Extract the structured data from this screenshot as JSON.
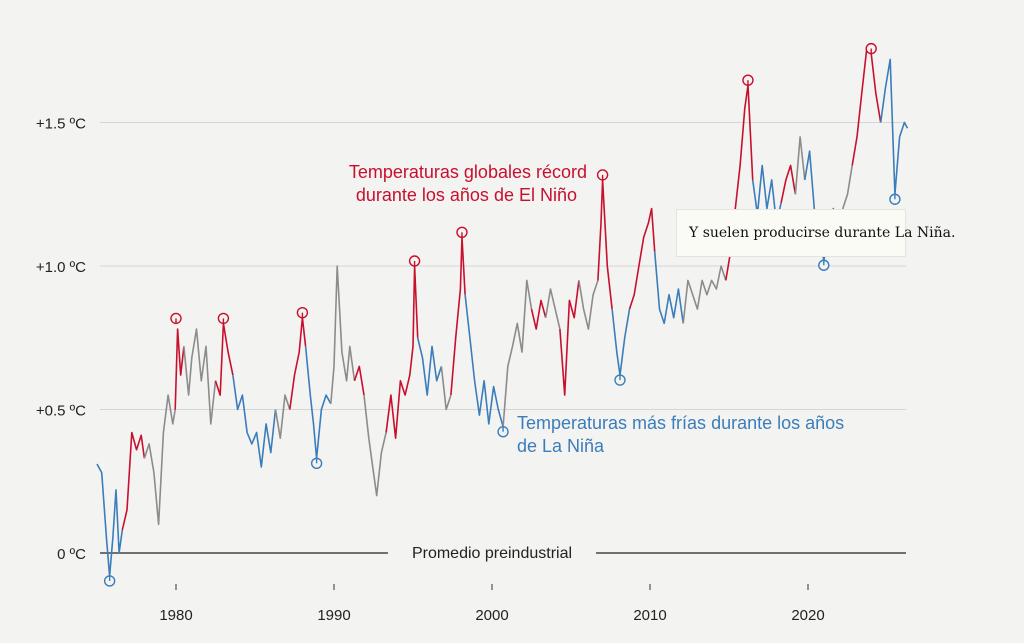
{
  "chart_data": {
    "type": "line",
    "ylabel": "",
    "xlabel": "",
    "ylim": [
      -0.1,
      1.85
    ],
    "xlim": [
      1975,
      2026.3
    ],
    "y_ticks": [
      {
        "value": 0,
        "label": "0 ºC"
      },
      {
        "value": 0.5,
        "label": "+0.5 ºC"
      },
      {
        "value": 1.0,
        "label": "+1.0 ºC"
      },
      {
        "value": 1.5,
        "label": "+1.5 ºC"
      }
    ],
    "x_ticks": [
      {
        "value": 1980,
        "label": "1980"
      },
      {
        "value": 1990,
        "label": "1990"
      },
      {
        "value": 2000,
        "label": "2000"
      },
      {
        "value": 2010,
        "label": "2010"
      },
      {
        "value": 2020,
        "label": "2020"
      }
    ],
    "baseline_label": "Promedio preindustrial",
    "grid": true,
    "colors": {
      "el_nino": "#c8102e",
      "la_nina": "#3b7dbb",
      "neutral": "#8c8c8c"
    },
    "annotations": {
      "el_nino": [
        "Temperaturas globales récord",
        "durante los años de El Niño"
      ],
      "la_nina": [
        "Temperaturas más frías durante los años",
        "de La Niña"
      ]
    },
    "series": [
      {
        "phase": "la_nina",
        "points": [
          [
            1975.0,
            0.31
          ],
          [
            1975.3,
            0.28
          ],
          [
            1975.6,
            0.05
          ],
          [
            1975.8,
            -0.08
          ],
          [
            1976.0,
            0.05
          ],
          [
            1976.2,
            0.22
          ],
          [
            1976.4,
            0.0
          ],
          [
            1976.6,
            0.08
          ]
        ]
      },
      {
        "phase": "el_nino",
        "points": [
          [
            1976.6,
            0.08
          ],
          [
            1976.9,
            0.15
          ],
          [
            1977.2,
            0.42
          ],
          [
            1977.5,
            0.36
          ],
          [
            1977.8,
            0.41
          ],
          [
            1978.0,
            0.33
          ]
        ]
      },
      {
        "phase": "neutral",
        "points": [
          [
            1978.0,
            0.33
          ],
          [
            1978.3,
            0.38
          ],
          [
            1978.6,
            0.28
          ],
          [
            1978.9,
            0.1
          ],
          [
            1979.2,
            0.42
          ],
          [
            1979.5,
            0.55
          ],
          [
            1979.8,
            0.45
          ],
          [
            1979.95,
            0.5
          ]
        ]
      },
      {
        "phase": "el_nino",
        "points": [
          [
            1979.95,
            0.5
          ],
          [
            1980.1,
            0.78
          ],
          [
            1980.3,
            0.62
          ],
          [
            1980.5,
            0.72
          ]
        ]
      },
      {
        "phase": "neutral",
        "points": [
          [
            1980.5,
            0.72
          ],
          [
            1980.8,
            0.55
          ],
          [
            1981.0,
            0.68
          ],
          [
            1981.3,
            0.78
          ],
          [
            1981.6,
            0.6
          ],
          [
            1981.9,
            0.72
          ],
          [
            1982.2,
            0.45
          ],
          [
            1982.5,
            0.6
          ]
        ]
      },
      {
        "phase": "el_nino",
        "points": [
          [
            1982.5,
            0.6
          ],
          [
            1982.8,
            0.55
          ],
          [
            1983.0,
            0.8
          ],
          [
            1983.3,
            0.7
          ],
          [
            1983.6,
            0.62
          ]
        ]
      },
      {
        "phase": "la_nina",
        "points": [
          [
            1983.6,
            0.62
          ],
          [
            1983.9,
            0.5
          ],
          [
            1984.2,
            0.55
          ],
          [
            1984.5,
            0.42
          ],
          [
            1984.8,
            0.38
          ],
          [
            1985.1,
            0.42
          ],
          [
            1985.4,
            0.3
          ],
          [
            1985.7,
            0.45
          ],
          [
            1986.0,
            0.35
          ],
          [
            1986.3,
            0.5
          ]
        ]
      },
      {
        "phase": "neutral",
        "points": [
          [
            1986.3,
            0.5
          ],
          [
            1986.6,
            0.4
          ],
          [
            1986.9,
            0.55
          ],
          [
            1987.2,
            0.5
          ]
        ]
      },
      {
        "phase": "el_nino",
        "points": [
          [
            1987.2,
            0.5
          ],
          [
            1987.5,
            0.62
          ],
          [
            1987.8,
            0.7
          ],
          [
            1988.0,
            0.82
          ],
          [
            1988.2,
            0.72
          ]
        ]
      },
      {
        "phase": "la_nina",
        "points": [
          [
            1988.2,
            0.72
          ],
          [
            1988.5,
            0.55
          ],
          [
            1988.7,
            0.45
          ],
          [
            1988.9,
            0.33
          ],
          [
            1989.2,
            0.5
          ],
          [
            1989.5,
            0.55
          ],
          [
            1989.8,
            0.52
          ]
        ]
      },
      {
        "phase": "neutral",
        "points": [
          [
            1989.8,
            0.52
          ],
          [
            1990.0,
            0.65
          ],
          [
            1990.2,
            1.0
          ],
          [
            1990.5,
            0.7
          ],
          [
            1990.8,
            0.6
          ],
          [
            1991.0,
            0.72
          ],
          [
            1991.3,
            0.6
          ]
        ]
      },
      {
        "phase": "el_nino",
        "points": [
          [
            1991.3,
            0.6
          ],
          [
            1991.6,
            0.65
          ],
          [
            1991.9,
            0.55
          ]
        ]
      },
      {
        "phase": "neutral",
        "points": [
          [
            1991.9,
            0.55
          ],
          [
            1992.2,
            0.4
          ],
          [
            1992.5,
            0.28
          ],
          [
            1992.7,
            0.2
          ],
          [
            1993.0,
            0.35
          ],
          [
            1993.3,
            0.42
          ]
        ]
      },
      {
        "phase": "el_nino",
        "points": [
          [
            1993.3,
            0.42
          ],
          [
            1993.6,
            0.55
          ],
          [
            1993.9,
            0.4
          ],
          [
            1994.2,
            0.6
          ],
          [
            1994.5,
            0.55
          ],
          [
            1994.8,
            0.62
          ],
          [
            1995.0,
            0.72
          ],
          [
            1995.1,
            1.0
          ],
          [
            1995.3,
            0.75
          ]
        ]
      },
      {
        "phase": "la_nina",
        "points": [
          [
            1995.3,
            0.75
          ],
          [
            1995.6,
            0.68
          ],
          [
            1995.9,
            0.55
          ],
          [
            1996.2,
            0.72
          ],
          [
            1996.5,
            0.6
          ],
          [
            1996.8,
            0.65
          ]
        ]
      },
      {
        "phase": "neutral",
        "points": [
          [
            1996.8,
            0.65
          ],
          [
            1997.1,
            0.5
          ],
          [
            1997.4,
            0.55
          ]
        ]
      },
      {
        "phase": "el_nino",
        "points": [
          [
            1997.4,
            0.55
          ],
          [
            1997.7,
            0.75
          ],
          [
            1998.0,
            0.92
          ],
          [
            1998.1,
            1.1
          ],
          [
            1998.3,
            0.9
          ]
        ]
      },
      {
        "phase": "la_nina",
        "points": [
          [
            1998.3,
            0.9
          ],
          [
            1998.6,
            0.75
          ],
          [
            1998.9,
            0.6
          ],
          [
            1999.2,
            0.48
          ],
          [
            1999.5,
            0.6
          ],
          [
            1999.8,
            0.45
          ],
          [
            2000.1,
            0.58
          ],
          [
            2000.4,
            0.5
          ],
          [
            2000.7,
            0.44
          ]
        ]
      },
      {
        "phase": "neutral",
        "points": [
          [
            2000.7,
            0.44
          ],
          [
            2001.0,
            0.65
          ],
          [
            2001.3,
            0.72
          ],
          [
            2001.6,
            0.8
          ],
          [
            2001.9,
            0.7
          ],
          [
            2002.2,
            0.95
          ],
          [
            2002.5,
            0.85
          ]
        ]
      },
      {
        "phase": "el_nino",
        "points": [
          [
            2002.5,
            0.85
          ],
          [
            2002.8,
            0.78
          ],
          [
            2003.1,
            0.88
          ],
          [
            2003.4,
            0.82
          ]
        ]
      },
      {
        "phase": "neutral",
        "points": [
          [
            2003.4,
            0.82
          ],
          [
            2003.7,
            0.92
          ],
          [
            2004.0,
            0.85
          ],
          [
            2004.3,
            0.78
          ]
        ]
      },
      {
        "phase": "el_nino",
        "points": [
          [
            2004.3,
            0.78
          ],
          [
            2004.6,
            0.55
          ],
          [
            2004.9,
            0.88
          ],
          [
            2005.2,
            0.82
          ],
          [
            2005.5,
            0.95
          ]
        ]
      },
      {
        "phase": "neutral",
        "points": [
          [
            2005.5,
            0.95
          ],
          [
            2005.8,
            0.85
          ],
          [
            2006.1,
            0.78
          ],
          [
            2006.4,
            0.9
          ],
          [
            2006.7,
            0.95
          ]
        ]
      },
      {
        "phase": "el_nino",
        "points": [
          [
            2006.7,
            0.95
          ],
          [
            2006.9,
            1.15
          ],
          [
            2007.0,
            1.3
          ],
          [
            2007.3,
            1.0
          ],
          [
            2007.6,
            0.85
          ]
        ]
      },
      {
        "phase": "la_nina",
        "points": [
          [
            2007.6,
            0.85
          ],
          [
            2007.9,
            0.7
          ],
          [
            2008.1,
            0.62
          ],
          [
            2008.4,
            0.75
          ],
          [
            2008.7,
            0.85
          ]
        ]
      },
      {
        "phase": "el_nino",
        "points": [
          [
            2008.7,
            0.85
          ],
          [
            2009.0,
            0.9
          ],
          [
            2009.3,
            1.0
          ],
          [
            2009.6,
            1.1
          ],
          [
            2009.9,
            1.15
          ],
          [
            2010.1,
            1.2
          ],
          [
            2010.3,
            1.05
          ]
        ]
      },
      {
        "phase": "la_nina",
        "points": [
          [
            2010.3,
            1.05
          ],
          [
            2010.6,
            0.85
          ],
          [
            2010.9,
            0.8
          ],
          [
            2011.2,
            0.9
          ],
          [
            2011.5,
            0.82
          ],
          [
            2011.8,
            0.92
          ],
          [
            2012.1,
            0.8
          ]
        ]
      },
      {
        "phase": "neutral",
        "points": [
          [
            2012.1,
            0.8
          ],
          [
            2012.4,
            0.95
          ],
          [
            2012.7,
            0.9
          ],
          [
            2013.0,
            0.85
          ],
          [
            2013.3,
            0.95
          ],
          [
            2013.6,
            0.9
          ],
          [
            2013.9,
            0.95
          ],
          [
            2014.2,
            0.92
          ],
          [
            2014.5,
            1.0
          ],
          [
            2014.8,
            0.95
          ]
        ]
      },
      {
        "phase": "el_nino",
        "points": [
          [
            2014.8,
            0.95
          ],
          [
            2015.1,
            1.05
          ],
          [
            2015.4,
            1.2
          ],
          [
            2015.7,
            1.35
          ],
          [
            2016.0,
            1.55
          ],
          [
            2016.2,
            1.63
          ],
          [
            2016.5,
            1.3
          ]
        ]
      },
      {
        "phase": "la_nina",
        "points": [
          [
            2016.5,
            1.3
          ],
          [
            2016.8,
            1.18
          ],
          [
            2017.1,
            1.35
          ],
          [
            2017.4,
            1.2
          ],
          [
            2017.7,
            1.3
          ],
          [
            2018.0,
            1.15
          ],
          [
            2018.3,
            1.22
          ]
        ]
      },
      {
        "phase": "el_nino",
        "points": [
          [
            2018.3,
            1.22
          ],
          [
            2018.6,
            1.3
          ],
          [
            2018.9,
            1.35
          ],
          [
            2019.2,
            1.25
          ]
        ]
      },
      {
        "phase": "neutral",
        "points": [
          [
            2019.2,
            1.25
          ],
          [
            2019.5,
            1.45
          ],
          [
            2019.8,
            1.3
          ]
        ]
      },
      {
        "phase": "la_nina",
        "points": [
          [
            2019.8,
            1.3
          ],
          [
            2020.1,
            1.4
          ],
          [
            2020.4,
            1.2
          ],
          [
            2020.7,
            1.1
          ],
          [
            2021.0,
            1.02
          ],
          [
            2021.3,
            1.1
          ],
          [
            2021.6,
            1.2
          ],
          [
            2021.9,
            1.1
          ]
        ]
      },
      {
        "phase": "neutral",
        "points": [
          [
            2021.9,
            1.1
          ],
          [
            2022.2,
            1.2
          ],
          [
            2022.5,
            1.25
          ],
          [
            2022.8,
            1.35
          ]
        ]
      },
      {
        "phase": "el_nino",
        "points": [
          [
            2022.8,
            1.35
          ],
          [
            2023.1,
            1.45
          ],
          [
            2023.4,
            1.6
          ],
          [
            2023.7,
            1.75
          ],
          [
            2024.0,
            1.74
          ],
          [
            2024.3,
            1.6
          ],
          [
            2024.6,
            1.5
          ]
        ]
      },
      {
        "phase": "la_nina",
        "points": [
          [
            2024.6,
            1.5
          ],
          [
            2024.9,
            1.62
          ],
          [
            2025.2,
            1.72
          ],
          [
            2025.5,
            1.25
          ],
          [
            2025.8,
            1.45
          ],
          [
            2026.1,
            1.5
          ],
          [
            2026.3,
            1.48
          ]
        ]
      }
    ],
    "markers": [
      {
        "phase": "la_nina",
        "x": 1975.8,
        "y": -0.08,
        "dir": "down"
      },
      {
        "phase": "el_nino",
        "x": 1980.0,
        "y": 0.8,
        "dir": "up"
      },
      {
        "phase": "el_nino",
        "x": 1983.0,
        "y": 0.8,
        "dir": "up"
      },
      {
        "phase": "el_nino",
        "x": 1988.0,
        "y": 0.82,
        "dir": "up"
      },
      {
        "phase": "la_nina",
        "x": 1988.9,
        "y": 0.33,
        "dir": "down"
      },
      {
        "phase": "el_nino",
        "x": 1995.1,
        "y": 1.0,
        "dir": "up"
      },
      {
        "phase": "el_nino",
        "x": 1998.1,
        "y": 1.1,
        "dir": "up"
      },
      {
        "phase": "la_nina",
        "x": 2000.7,
        "y": 0.44,
        "dir": "down"
      },
      {
        "phase": "el_nino",
        "x": 2007.0,
        "y": 1.3,
        "dir": "up"
      },
      {
        "phase": "la_nina",
        "x": 2008.1,
        "y": 0.62,
        "dir": "down"
      },
      {
        "phase": "el_nino",
        "x": 2016.2,
        "y": 1.63,
        "dir": "up"
      },
      {
        "phase": "la_nina",
        "x": 2021.0,
        "y": 1.02,
        "dir": "down"
      },
      {
        "phase": "el_nino",
        "x": 2024.0,
        "y": 1.74,
        "dir": "up"
      },
      {
        "phase": "la_nina",
        "x": 2025.5,
        "y": 1.25,
        "dir": "down"
      }
    ]
  },
  "tooltip": {
    "text": "Y suelen producirse durante La Niña."
  }
}
